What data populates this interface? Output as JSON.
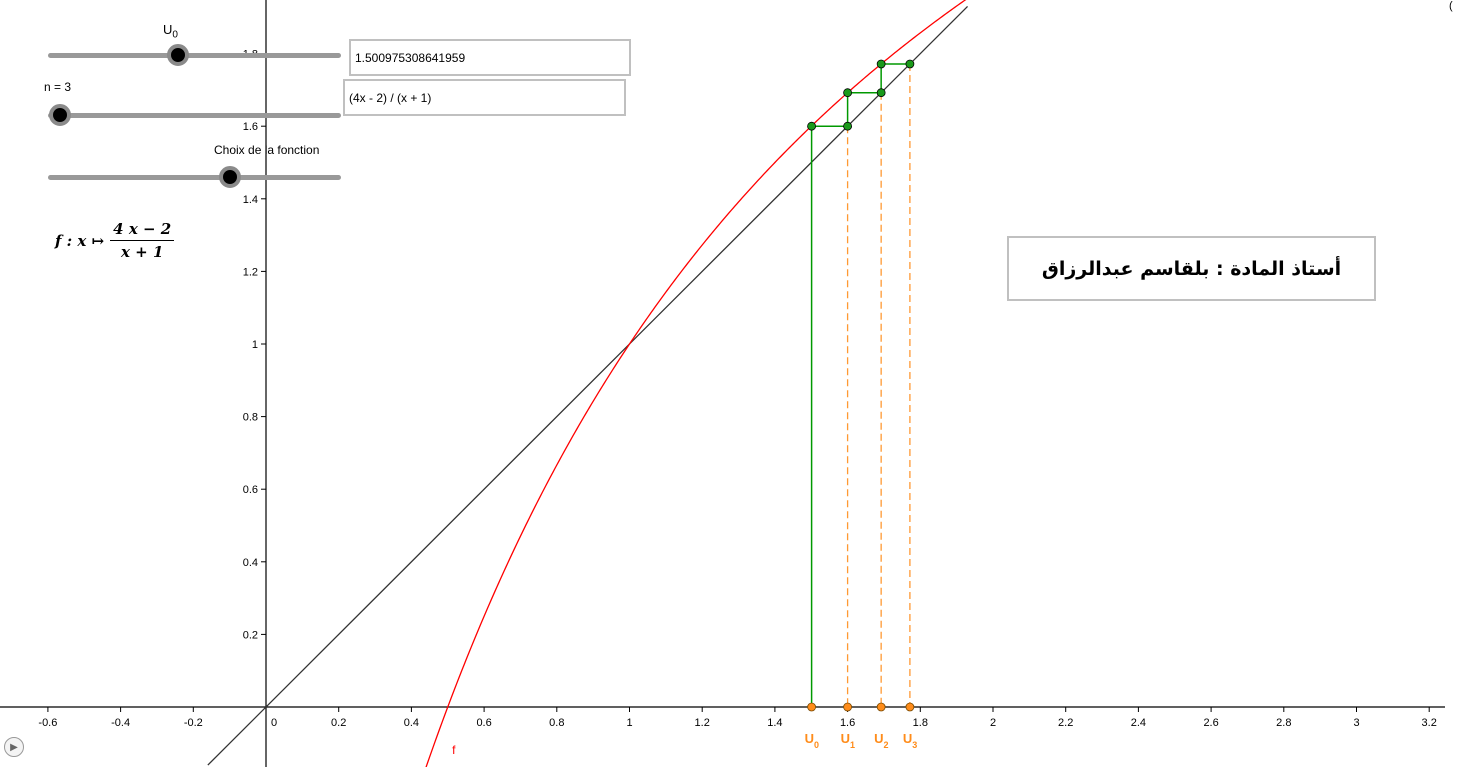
{
  "controls": {
    "u0_slider": {
      "label_base": "U",
      "label_sub": "0",
      "value": 1.500975308641959,
      "min": -1,
      "max": 3
    },
    "n_slider": {
      "label": "n = 3",
      "value": 3
    },
    "choice_slider": {
      "label": "Choix de la fonction",
      "position": 0.62
    },
    "u0_input": {
      "value": "1.500975308641959"
    },
    "function_input": {
      "value": "(4x - 2) / (x + 1)"
    }
  },
  "formula": {
    "prefix": "f : x ↦",
    "numerator": "4 x − 2",
    "denominator": "x + 1"
  },
  "teacher_label": "أستاذ المادة : بلقاسم عبدالرزاق",
  "corner_mark": "(",
  "play_button": "▶",
  "chart_data": {
    "type": "line",
    "function_name": "f",
    "function_expression": "(4x - 2) / (x + 1)",
    "xlim": [
      -0.7,
      3.25
    ],
    "ylim": [
      -0.16,
      1.93
    ],
    "x_ticks": [
      -0.6,
      -0.4,
      -0.2,
      0,
      0.2,
      0.4,
      0.6,
      0.8,
      1,
      1.2,
      1.4,
      1.6,
      1.8,
      2,
      2.2,
      2.4,
      2.6,
      2.8,
      3,
      3.2
    ],
    "x_tick_labels": [
      "-0.6",
      "-0.4",
      "-0.2",
      "0",
      "0.2",
      "0.4",
      "0.6",
      "0.8",
      "1",
      "1.2",
      "1.4",
      "1.6",
      "1.8",
      "2",
      "2.2",
      "2.4",
      "2.6",
      "2.8",
      "3",
      "3.2"
    ],
    "y_ticks": [
      0.2,
      0.4,
      0.6,
      0.8,
      1,
      1.2,
      1.4,
      1.6,
      1.8
    ],
    "y_tick_labels": [
      "0.2",
      "0.4",
      "0.6",
      "0.8",
      "1",
      "1.2",
      "1.4",
      "1.6",
      "1.8"
    ],
    "sequence_values": [
      1.500975308641959,
      1.6,
      1.6923,
      1.7714
    ],
    "sequence_labels": [
      {
        "base": "U",
        "sub": "0"
      },
      {
        "base": "U",
        "sub": "1"
      },
      {
        "base": "U",
        "sub": "2"
      },
      {
        "base": "U",
        "sub": "3"
      }
    ],
    "colors": {
      "function": "#ff0000",
      "identity": "#333333",
      "cobweb": "#009900",
      "projection": "#ff9933",
      "points": "#006600",
      "axis_points": "#ff8c1a",
      "axis": "#000000"
    },
    "grid": false
  }
}
